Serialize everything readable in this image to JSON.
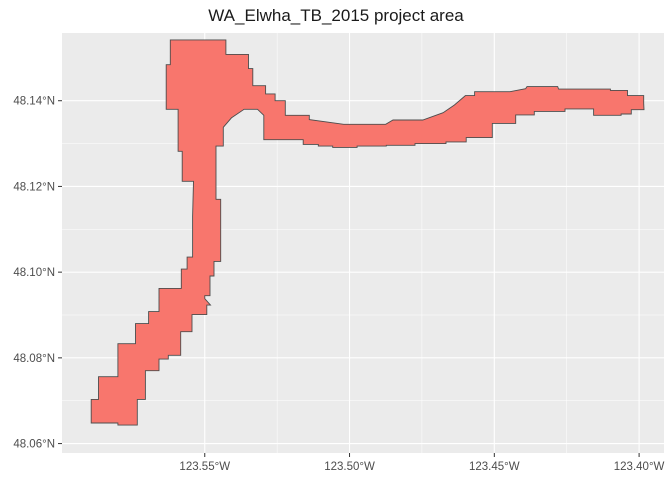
{
  "title": "WA_Elwha_TB_2015 project area",
  "colors": {
    "panel": "#ebebeb",
    "grid": "#ffffff",
    "fill": "#f8766d",
    "outline": "#4d4d4d",
    "tick_text": "#4d4d4d"
  },
  "chart_data": {
    "type": "map",
    "title": "WA_Elwha_TB_2015 project area",
    "x_ticks": [
      {
        "value": -123.55,
        "label": "123.55°W"
      },
      {
        "value": -123.5,
        "label": "123.50°W"
      },
      {
        "value": -123.45,
        "label": "123.45°W"
      },
      {
        "value": -123.4,
        "label": "123.40°W"
      }
    ],
    "y_ticks": [
      {
        "value": 48.06,
        "label": "48.06°N"
      },
      {
        "value": 48.08,
        "label": "48.08°N"
      },
      {
        "value": 48.1,
        "label": "48.10°N"
      },
      {
        "value": 48.12,
        "label": "48.12°N"
      },
      {
        "value": 48.14,
        "label": "48.14°N"
      }
    ],
    "xlim": [
      -123.5993,
      -123.3914
    ],
    "ylim": [
      48.0578,
      48.1558
    ],
    "grid": true,
    "polygon": [
      [
        -123.5892,
        48.0648
      ],
      [
        -123.5892,
        48.0703
      ],
      [
        -123.5867,
        48.0703
      ],
      [
        -123.5867,
        48.0756
      ],
      [
        -123.58,
        48.0756
      ],
      [
        -123.58,
        48.0833
      ],
      [
        -123.5739,
        48.0833
      ],
      [
        -123.5739,
        48.088
      ],
      [
        -123.5694,
        48.088
      ],
      [
        -123.5694,
        48.0908
      ],
      [
        -123.5658,
        48.0908
      ],
      [
        -123.5658,
        48.0962
      ],
      [
        -123.5581,
        48.0962
      ],
      [
        -123.5581,
        48.1007
      ],
      [
        -123.5561,
        48.1007
      ],
      [
        -123.5561,
        48.1035
      ],
      [
        -123.5542,
        48.1035
      ],
      [
        -123.5542,
        48.113
      ],
      [
        -123.5539,
        48.1212
      ],
      [
        -123.5578,
        48.1212
      ],
      [
        -123.5578,
        48.1282
      ],
      [
        -123.5592,
        48.1282
      ],
      [
        -123.5592,
        48.138
      ],
      [
        -123.5633,
        48.138
      ],
      [
        -123.5633,
        48.1408
      ],
      [
        -123.5633,
        48.1484
      ],
      [
        -123.5619,
        48.1484
      ],
      [
        -123.5619,
        48.1542
      ],
      [
        -123.5427,
        48.1542
      ],
      [
        -123.5427,
        48.1508
      ],
      [
        -123.5349,
        48.1508
      ],
      [
        -123.5349,
        48.1475
      ],
      [
        -123.5334,
        48.1475
      ],
      [
        -123.5334,
        48.1435
      ],
      [
        -123.529,
        48.1435
      ],
      [
        -123.529,
        48.1416
      ],
      [
        -123.5257,
        48.1416
      ],
      [
        -123.5257,
        48.14
      ],
      [
        -123.5222,
        48.14
      ],
      [
        -123.5222,
        48.1366
      ],
      [
        -123.5139,
        48.1366
      ],
      [
        -123.5139,
        48.1356
      ],
      [
        -123.502,
        48.1345
      ],
      [
        -123.4875,
        48.1345
      ],
      [
        -123.485,
        48.1355
      ],
      [
        -123.4747,
        48.1355
      ],
      [
        -123.4677,
        48.1372
      ],
      [
        -123.4638,
        48.139
      ],
      [
        -123.46,
        48.1412
      ],
      [
        -123.4568,
        48.1412
      ],
      [
        -123.4568,
        48.1421
      ],
      [
        -123.4446,
        48.1421
      ],
      [
        -123.4392,
        48.1428
      ],
      [
        -123.4387,
        48.1433
      ],
      [
        -123.4281,
        48.1433
      ],
      [
        -123.4278,
        48.1427
      ],
      [
        -123.4099,
        48.1427
      ],
      [
        -123.4099,
        48.1424
      ],
      [
        -123.404,
        48.1424
      ],
      [
        -123.404,
        48.1412
      ],
      [
        -123.3984,
        48.1412
      ],
      [
        -123.3984,
        48.1394
      ],
      [
        -123.3983,
        48.1379
      ],
      [
        -123.4027,
        48.1379
      ],
      [
        -123.4027,
        48.1369
      ],
      [
        -123.4062,
        48.1369
      ],
      [
        -123.4062,
        48.1366
      ],
      [
        -123.4157,
        48.1366
      ],
      [
        -123.4157,
        48.1381
      ],
      [
        -123.4256,
        48.1381
      ],
      [
        -123.4256,
        48.1375
      ],
      [
        -123.4362,
        48.1375
      ],
      [
        -123.4362,
        48.1367
      ],
      [
        -123.4426,
        48.1367
      ],
      [
        -123.4426,
        48.1347
      ],
      [
        -123.4507,
        48.1347
      ],
      [
        -123.4507,
        48.1314
      ],
      [
        -123.454,
        48.1314
      ],
      [
        -123.4597,
        48.1314
      ],
      [
        -123.4597,
        48.1304
      ],
      [
        -123.4667,
        48.1304
      ],
      [
        -123.4667,
        48.13
      ],
      [
        -123.4774,
        48.13
      ],
      [
        -123.4774,
        48.1296
      ],
      [
        -123.4873,
        48.1296
      ],
      [
        -123.4873,
        48.1294
      ],
      [
        -123.4974,
        48.1294
      ],
      [
        -123.4974,
        48.1291
      ],
      [
        -123.5058,
        48.1291
      ],
      [
        -123.5058,
        48.1294
      ],
      [
        -123.5108,
        48.1294
      ],
      [
        -123.5108,
        48.1298
      ],
      [
        -123.516,
        48.1298
      ],
      [
        -123.516,
        48.1309
      ],
      [
        -123.5296,
        48.1309
      ],
      [
        -123.5296,
        48.1324
      ],
      [
        -123.5296,
        48.1366
      ],
      [
        -123.5318,
        48.138
      ],
      [
        -123.5364,
        48.138
      ],
      [
        -123.5408,
        48.136
      ],
      [
        -123.5436,
        48.1338
      ],
      [
        -123.5436,
        48.1294
      ],
      [
        -123.5461,
        48.1294
      ],
      [
        -123.5461,
        48.117
      ],
      [
        -123.5445,
        48.117
      ],
      [
        -123.5445,
        48.1025
      ],
      [
        -123.5468,
        48.1025
      ],
      [
        -123.5468,
        48.0991
      ],
      [
        -123.5482,
        48.0991
      ],
      [
        -123.5482,
        48.0945
      ],
      [
        -123.55,
        48.0945
      ],
      [
        -123.55,
        48.0938
      ],
      [
        -123.548,
        48.0923
      ],
      [
        -123.5493,
        48.0923
      ],
      [
        -123.5493,
        48.0901
      ],
      [
        -123.5544,
        48.0901
      ],
      [
        -123.5544,
        48.0861
      ],
      [
        -123.5583,
        48.0861
      ],
      [
        -123.5583,
        48.0806
      ],
      [
        -123.5626,
        48.0806
      ],
      [
        -123.5626,
        48.0797
      ],
      [
        -123.5658,
        48.0797
      ],
      [
        -123.5658,
        48.077
      ],
      [
        -123.5705,
        48.077
      ],
      [
        -123.5705,
        48.0703
      ],
      [
        -123.5733,
        48.0703
      ],
      [
        -123.5733,
        48.0643
      ],
      [
        -123.58,
        48.0643
      ],
      [
        -123.58,
        48.0648
      ]
    ]
  }
}
